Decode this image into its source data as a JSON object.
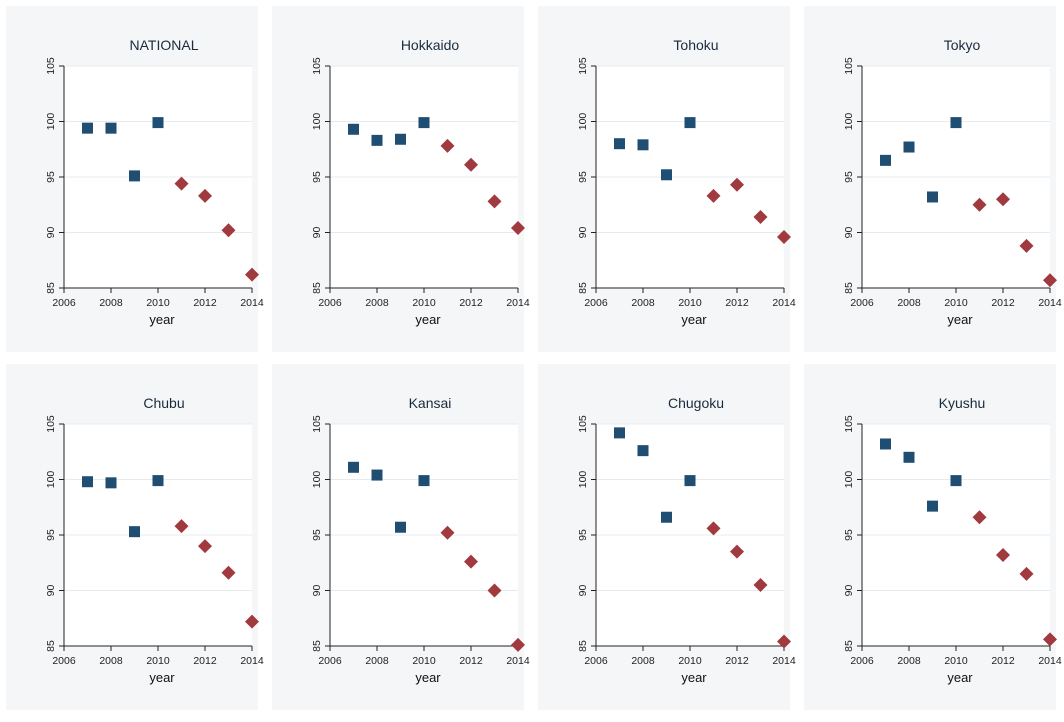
{
  "chart_data": [
    {
      "type": "scatter",
      "title": "NATIONAL",
      "xlabel": "year",
      "ylabel": "",
      "xlim": [
        2006,
        2014
      ],
      "ylim": [
        85,
        105
      ],
      "xticks": [
        "2006",
        "2008",
        "2010",
        "2012",
        "2014"
      ],
      "yticks": [
        "85",
        "90",
        "95",
        "100",
        "105"
      ],
      "series": [
        {
          "marker": "square",
          "color": "#1f4e72",
          "x": [
            2007,
            2008,
            2009,
            2010
          ],
          "y": [
            99.4,
            99.4,
            95.1,
            99.9
          ]
        },
        {
          "marker": "diamond",
          "color": "#a03a3f",
          "x": [
            2011,
            2012,
            2013,
            2014
          ],
          "y": [
            94.4,
            93.3,
            90.2,
            86.2
          ]
        }
      ]
    },
    {
      "type": "scatter",
      "title": "Hokkaido",
      "xlabel": "year",
      "ylabel": "",
      "xlim": [
        2006,
        2014
      ],
      "ylim": [
        85,
        105
      ],
      "xticks": [
        "2006",
        "2008",
        "2010",
        "2012",
        "2014"
      ],
      "yticks": [
        "85",
        "90",
        "95",
        "100",
        "105"
      ],
      "series": [
        {
          "marker": "square",
          "color": "#1f4e72",
          "x": [
            2007,
            2008,
            2009,
            2010
          ],
          "y": [
            99.3,
            98.3,
            98.4,
            99.9
          ]
        },
        {
          "marker": "diamond",
          "color": "#a03a3f",
          "x": [
            2011,
            2012,
            2013,
            2014
          ],
          "y": [
            97.8,
            96.1,
            92.8,
            90.4
          ]
        }
      ]
    },
    {
      "type": "scatter",
      "title": "Tohoku",
      "xlabel": "year",
      "ylabel": "",
      "xlim": [
        2006,
        2014
      ],
      "ylim": [
        85,
        105
      ],
      "xticks": [
        "2006",
        "2008",
        "2010",
        "2012",
        "2014"
      ],
      "yticks": [
        "85",
        "90",
        "95",
        "100",
        "105"
      ],
      "series": [
        {
          "marker": "square",
          "color": "#1f4e72",
          "x": [
            2007,
            2008,
            2009,
            2010
          ],
          "y": [
            98.0,
            97.9,
            95.2,
            99.9
          ]
        },
        {
          "marker": "diamond",
          "color": "#a03a3f",
          "x": [
            2011,
            2012,
            2013,
            2014
          ],
          "y": [
            93.3,
            94.3,
            91.4,
            89.6
          ]
        }
      ]
    },
    {
      "type": "scatter",
      "title": "Tokyo",
      "xlabel": "year",
      "ylabel": "",
      "xlim": [
        2006,
        2014
      ],
      "ylim": [
        85,
        105
      ],
      "xticks": [
        "2006",
        "2008",
        "2010",
        "2012",
        "2014"
      ],
      "yticks": [
        "85",
        "90",
        "95",
        "100",
        "105"
      ],
      "series": [
        {
          "marker": "square",
          "color": "#1f4e72",
          "x": [
            2007,
            2008,
            2009,
            2010
          ],
          "y": [
            96.5,
            97.7,
            93.2,
            99.9
          ]
        },
        {
          "marker": "diamond",
          "color": "#a03a3f",
          "x": [
            2011,
            2012,
            2013,
            2014
          ],
          "y": [
            92.5,
            93.0,
            88.8,
            85.7
          ]
        }
      ]
    },
    {
      "type": "scatter",
      "title": "Chubu",
      "xlabel": "year",
      "ylabel": "",
      "xlim": [
        2006,
        2014
      ],
      "ylim": [
        85,
        105
      ],
      "xticks": [
        "2006",
        "2008",
        "2010",
        "2012",
        "2014"
      ],
      "yticks": [
        "85",
        "90",
        "95",
        "100",
        "105"
      ],
      "series": [
        {
          "marker": "square",
          "color": "#1f4e72",
          "x": [
            2007,
            2008,
            2009,
            2010
          ],
          "y": [
            99.8,
            99.7,
            95.3,
            99.9
          ]
        },
        {
          "marker": "diamond",
          "color": "#a03a3f",
          "x": [
            2011,
            2012,
            2013,
            2014
          ],
          "y": [
            95.8,
            94.0,
            91.6,
            87.2
          ]
        }
      ]
    },
    {
      "type": "scatter",
      "title": "Kansai",
      "xlabel": "year",
      "ylabel": "",
      "xlim": [
        2006,
        2014
      ],
      "ylim": [
        85,
        105
      ],
      "xticks": [
        "2006",
        "2008",
        "2010",
        "2012",
        "2014"
      ],
      "yticks": [
        "85",
        "90",
        "95",
        "100",
        "105"
      ],
      "series": [
        {
          "marker": "square",
          "color": "#1f4e72",
          "x": [
            2007,
            2008,
            2009,
            2010
          ],
          "y": [
            101.1,
            100.4,
            95.7,
            99.9
          ]
        },
        {
          "marker": "diamond",
          "color": "#a03a3f",
          "x": [
            2011,
            2012,
            2013,
            2014
          ],
          "y": [
            95.2,
            92.6,
            90.0,
            85.1
          ]
        }
      ]
    },
    {
      "type": "scatter",
      "title": "Chugoku",
      "xlabel": "year",
      "ylabel": "",
      "xlim": [
        2006,
        2014
      ],
      "ylim": [
        85,
        105
      ],
      "xticks": [
        "2006",
        "2008",
        "2010",
        "2012",
        "2014"
      ],
      "yticks": [
        "85",
        "90",
        "95",
        "100",
        "105"
      ],
      "series": [
        {
          "marker": "square",
          "color": "#1f4e72",
          "x": [
            2007,
            2008,
            2009,
            2010
          ],
          "y": [
            104.2,
            102.6,
            96.6,
            99.9
          ]
        },
        {
          "marker": "diamond",
          "color": "#a03a3f",
          "x": [
            2011,
            2012,
            2013,
            2014
          ],
          "y": [
            95.6,
            93.5,
            90.5,
            85.4
          ]
        }
      ]
    },
    {
      "type": "scatter",
      "title": "Kyushu",
      "xlabel": "year",
      "ylabel": "",
      "xlim": [
        2006,
        2014
      ],
      "ylim": [
        85,
        105
      ],
      "xticks": [
        "2006",
        "2008",
        "2010",
        "2012",
        "2014"
      ],
      "yticks": [
        "85",
        "90",
        "95",
        "100",
        "105"
      ],
      "series": [
        {
          "marker": "square",
          "color": "#1f4e72",
          "x": [
            2007,
            2008,
            2009,
            2010
          ],
          "y": [
            103.2,
            102.0,
            97.6,
            99.9
          ]
        },
        {
          "marker": "diamond",
          "color": "#a03a3f",
          "x": [
            2011,
            2012,
            2013,
            2014
          ],
          "y": [
            96.6,
            93.2,
            91.5,
            85.6
          ]
        }
      ]
    }
  ]
}
